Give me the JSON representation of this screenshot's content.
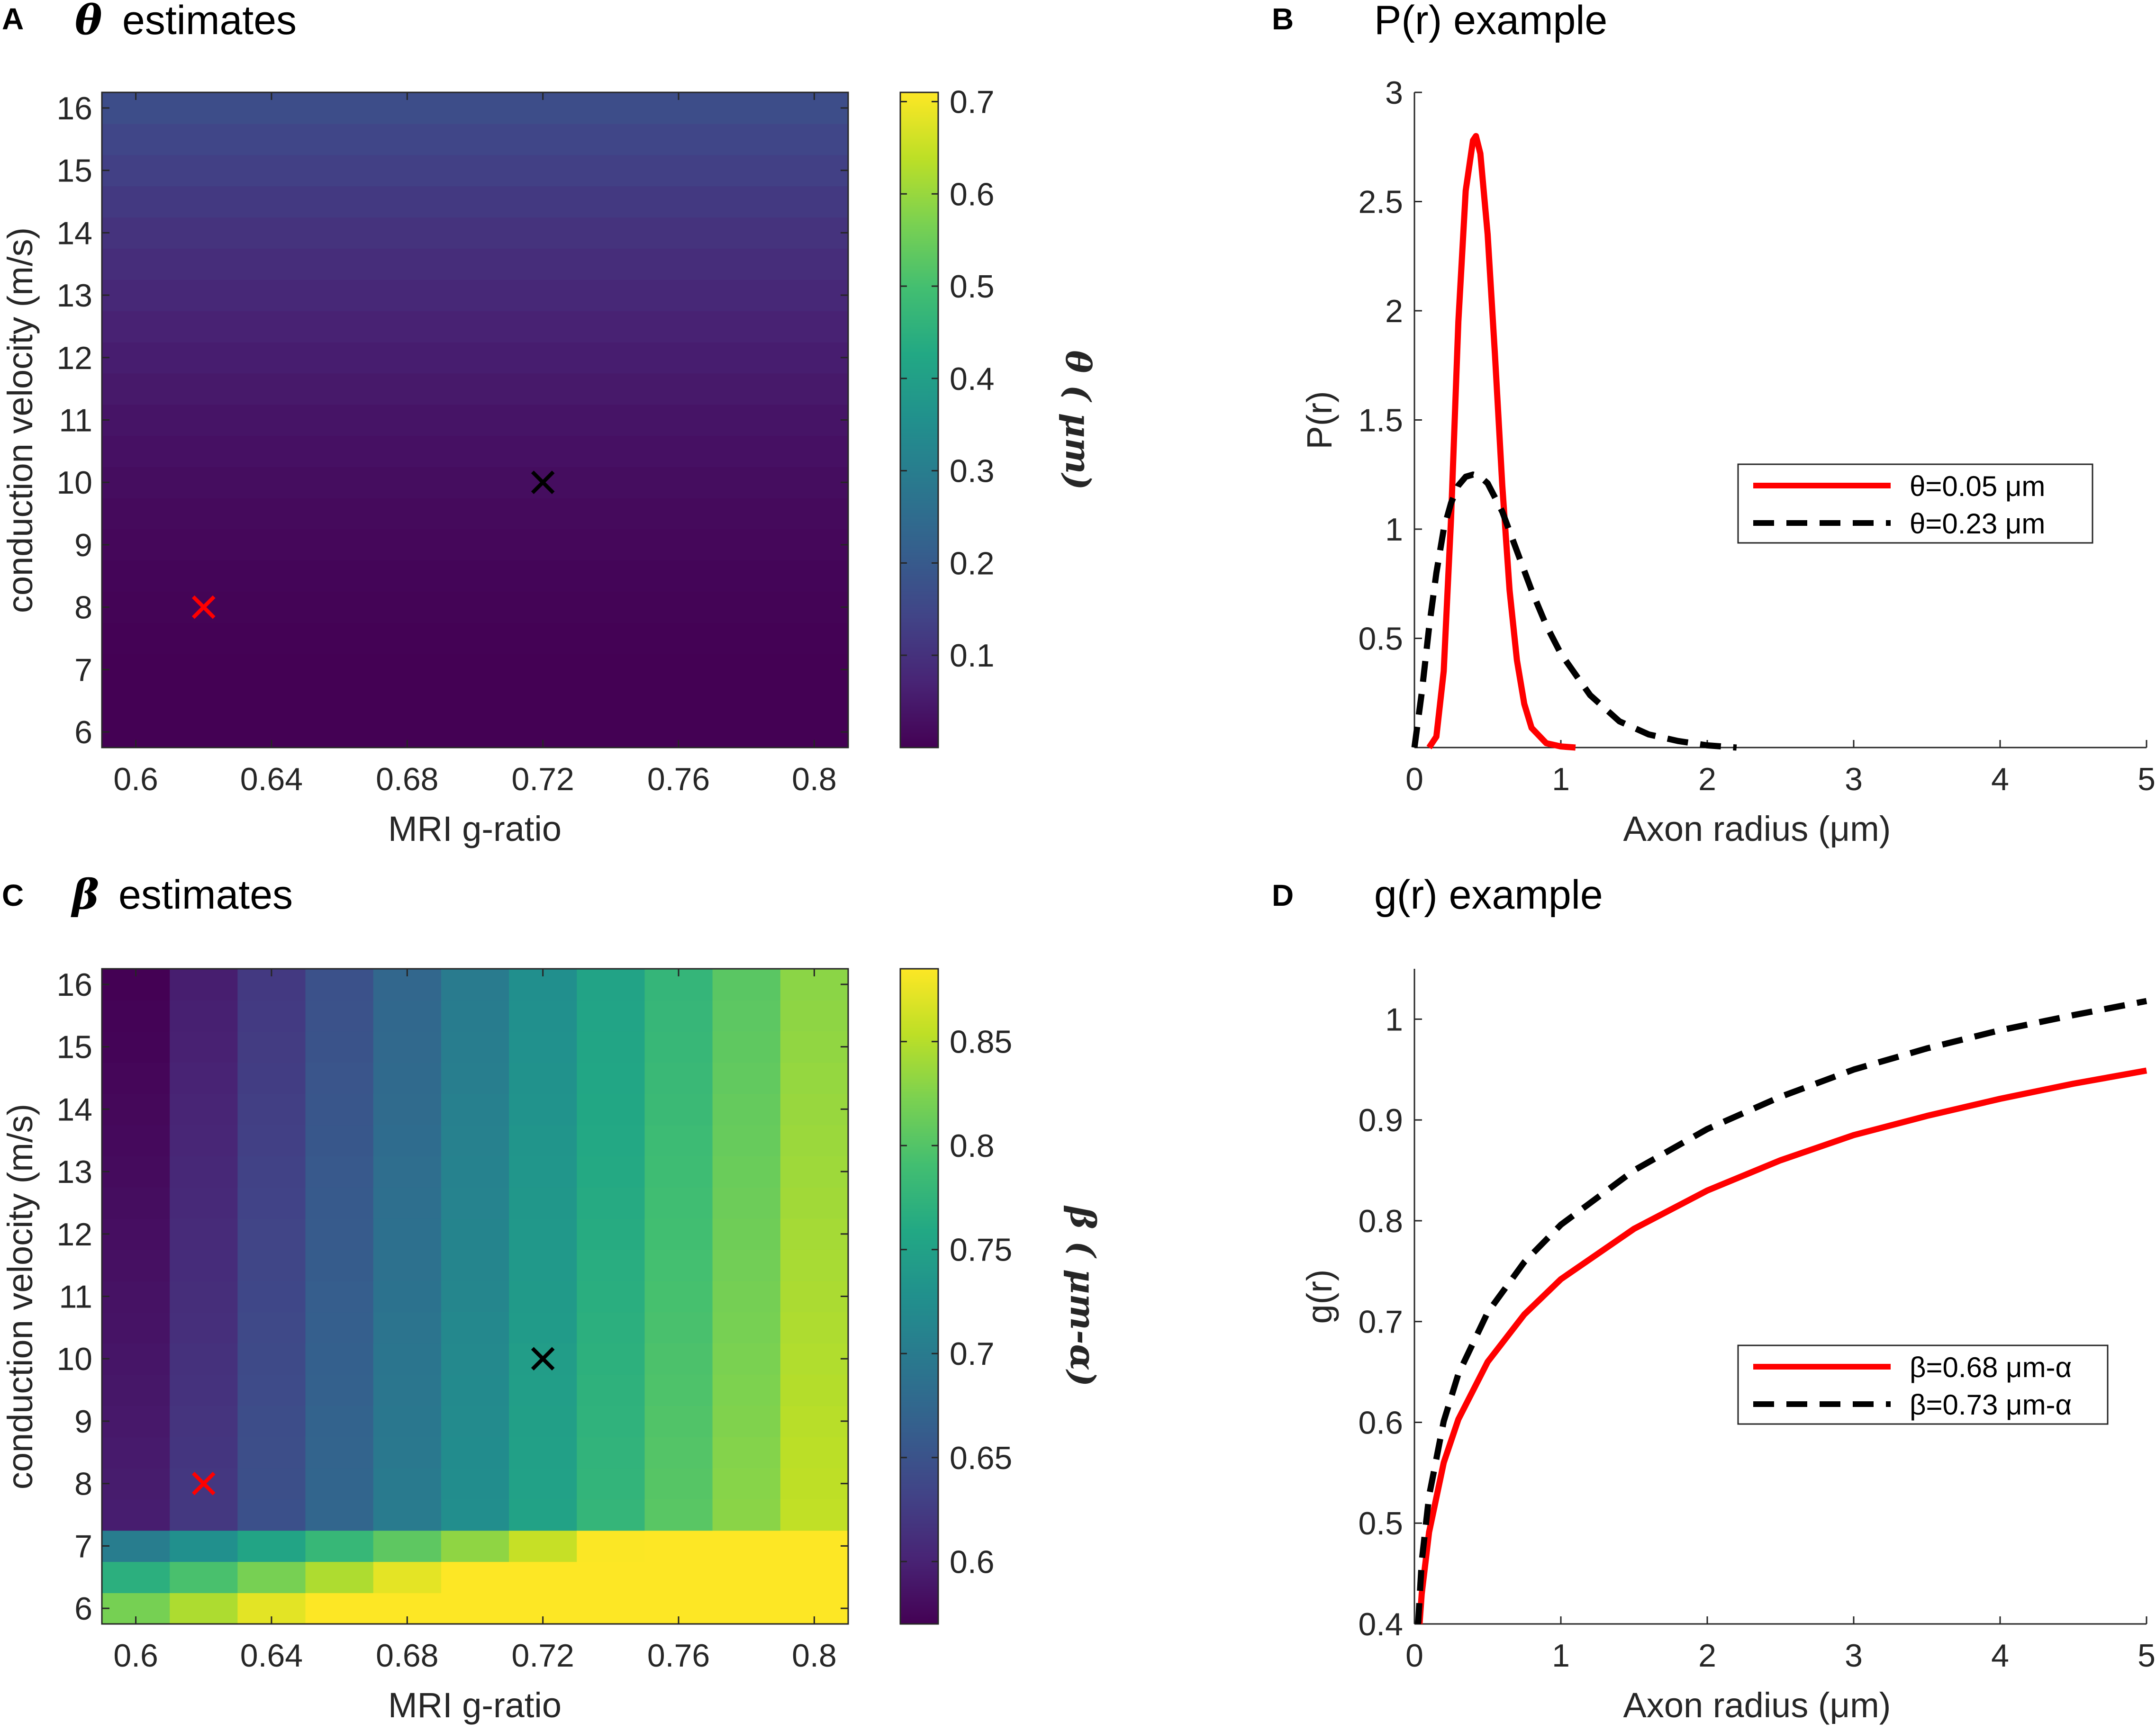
{
  "chart_data": [
    {
      "panel": "A",
      "type": "heatmap",
      "title_symbol": "θ",
      "title": "estimates",
      "xlabel": "MRI g-ratio",
      "ylabel": "conduction velocity (m/s)",
      "colorbar_label": "θ ( μm)",
      "x": [
        0.6,
        0.62,
        0.64,
        0.66,
        0.68,
        0.7,
        0.72,
        0.74,
        0.76,
        0.78,
        0.8
      ],
      "y": [
        6,
        6.5,
        7,
        7.5,
        8,
        8.5,
        9,
        9.5,
        10,
        10.5,
        11,
        11.5,
        12,
        12.5,
        13,
        13.5,
        14,
        14.5,
        15,
        15.5,
        16
      ],
      "value_model": "approx. 0.8*(v-6.25)^2/(v*exp(-16.4*g)+21.5)^2 μm, clipped at 0",
      "xlim": [
        0.59,
        0.81
      ],
      "ylim": [
        5.75,
        16.25
      ],
      "xticks": [
        "0.6",
        "0.64",
        "0.68",
        "0.72",
        "0.76",
        "0.8"
      ],
      "yticks": [
        "6",
        "7",
        "8",
        "9",
        "10",
        "11",
        "12",
        "13",
        "14",
        "15",
        "16"
      ],
      "colorbar_range": [
        0.0,
        0.71
      ],
      "colorbar_ticks": [
        "0.1",
        "0.2",
        "0.3",
        "0.4",
        "0.5",
        "0.6",
        "0.7"
      ],
      "markers": [
        {
          "x": 0.62,
          "y": 8,
          "color": "#ff0000",
          "symbol": "x"
        },
        {
          "x": 0.72,
          "y": 10,
          "color": "#000000",
          "symbol": "x"
        }
      ]
    },
    {
      "panel": "B",
      "type": "line",
      "title": "P(r) example",
      "xlabel": "Axon radius (μm)",
      "ylabel": "P(r)",
      "xlim": [
        0,
        5
      ],
      "ylim": [
        0,
        3
      ],
      "xticks": [
        "0",
        "1",
        "2",
        "3",
        "4",
        "5"
      ],
      "yticks": [
        "0.5",
        "1",
        "1.5",
        "2",
        "2.5",
        "3"
      ],
      "legend_position": "center-right",
      "series": [
        {
          "name": "θ=0.05 μm",
          "color": "#ff0000",
          "dash": "solid",
          "x": [
            0.1,
            0.15,
            0.2,
            0.25,
            0.3,
            0.35,
            0.4,
            0.42,
            0.45,
            0.5,
            0.55,
            0.6,
            0.65,
            0.7,
            0.75,
            0.8,
            0.9,
            1.0,
            1.1
          ],
          "y": [
            0.0,
            0.05,
            0.35,
            1.05,
            1.95,
            2.55,
            2.78,
            2.8,
            2.72,
            2.35,
            1.8,
            1.2,
            0.72,
            0.4,
            0.2,
            0.09,
            0.02,
            0.005,
            0.0
          ]
        },
        {
          "name": "θ=0.23 μm",
          "color": "#000000",
          "dash": "dashed",
          "x": [
            0.0,
            0.05,
            0.1,
            0.15,
            0.2,
            0.25,
            0.3,
            0.35,
            0.4,
            0.45,
            0.5,
            0.6,
            0.7,
            0.8,
            0.9,
            1.0,
            1.2,
            1.4,
            1.6,
            1.8,
            2.0,
            2.2
          ],
          "y": [
            0.0,
            0.25,
            0.55,
            0.8,
            1.0,
            1.12,
            1.2,
            1.24,
            1.25,
            1.24,
            1.21,
            1.08,
            0.9,
            0.72,
            0.56,
            0.43,
            0.24,
            0.12,
            0.06,
            0.03,
            0.01,
            0.0
          ]
        }
      ]
    },
    {
      "panel": "C",
      "type": "heatmap",
      "title_symbol": "β",
      "title": "estimates",
      "xlabel": "MRI g-ratio",
      "ylabel": "conduction velocity (m/s)",
      "colorbar_label": "β ( μm-α)",
      "x": [
        0.6,
        0.62,
        0.64,
        0.66,
        0.68,
        0.7,
        0.72,
        0.74,
        0.76,
        0.78,
        0.8
      ],
      "y": [
        6,
        6.5,
        7,
        7.5,
        8,
        8.5,
        9,
        9.5,
        10,
        10.5,
        11,
        11.5,
        12,
        12.5,
        13,
        13.5,
        14,
        14.5,
        15,
        15.5,
        16
      ],
      "value_model": "approx. 0.57 + 1.3*(g-0.6) + 0.003*(16-v) μm^-α for v>=7.5; much higher in bottom rows (6-7 m/s)",
      "xlim": [
        0.59,
        0.81
      ],
      "ylim": [
        5.75,
        16.25
      ],
      "xticks": [
        "0.6",
        "0.64",
        "0.68",
        "0.72",
        "0.76",
        "0.8"
      ],
      "yticks": [
        "6",
        "7",
        "8",
        "9",
        "10",
        "11",
        "12",
        "13",
        "14",
        "15",
        "16"
      ],
      "colorbar_range": [
        0.57,
        0.885
      ],
      "colorbar_ticks": [
        "0.6",
        "0.65",
        "0.7",
        "0.75",
        "0.8",
        "0.85"
      ],
      "markers": [
        {
          "x": 0.62,
          "y": 8,
          "color": "#ff0000",
          "symbol": "x"
        },
        {
          "x": 0.72,
          "y": 10,
          "color": "#000000",
          "symbol": "x"
        }
      ]
    },
    {
      "panel": "D",
      "type": "line",
      "title": "g(r) example",
      "xlabel": "Axon radius (μm)",
      "ylabel": "g(r)",
      "xlim": [
        0,
        5
      ],
      "ylim": [
        0.4,
        1.05
      ],
      "xticks": [
        "0",
        "1",
        "2",
        "3",
        "4",
        "5"
      ],
      "yticks": [
        "0.4",
        "0.5",
        "0.6",
        "0.7",
        "0.8",
        "0.9",
        "1"
      ],
      "legend_position": "center-right",
      "series": [
        {
          "name": "β=0.68 μm-α",
          "color": "#ff0000",
          "dash": "solid",
          "x": [
            0.035,
            0.05,
            0.1,
            0.2,
            0.3,
            0.5,
            0.75,
            1.0,
            1.5,
            2.0,
            2.5,
            3.0,
            3.5,
            4.0,
            4.5,
            5.0
          ],
          "y": [
            0.4,
            0.43,
            0.491,
            0.56,
            0.603,
            0.66,
            0.707,
            0.742,
            0.792,
            0.83,
            0.86,
            0.885,
            0.904,
            0.921,
            0.936,
            0.949
          ]
        },
        {
          "name": "β=0.73 μm-α",
          "color": "#000000",
          "dash": "dashed",
          "x": [
            0.025,
            0.05,
            0.1,
            0.2,
            0.3,
            0.5,
            0.75,
            1.0,
            1.5,
            2.0,
            2.5,
            3.0,
            3.5,
            4.0,
            4.5,
            5.0
          ],
          "y": [
            0.4,
            0.462,
            0.527,
            0.601,
            0.648,
            0.709,
            0.759,
            0.796,
            0.85,
            0.891,
            0.923,
            0.95,
            0.971,
            0.989,
            1.004,
            1.018
          ]
        }
      ]
    }
  ],
  "panel_letters": [
    "A",
    "B",
    "C",
    "D"
  ],
  "colormap": [
    "#440154",
    "#482475",
    "#414487",
    "#355f8d",
    "#2a788e",
    "#21908d",
    "#22a884",
    "#42be71",
    "#7ad151",
    "#bddf26",
    "#fde725"
  ]
}
